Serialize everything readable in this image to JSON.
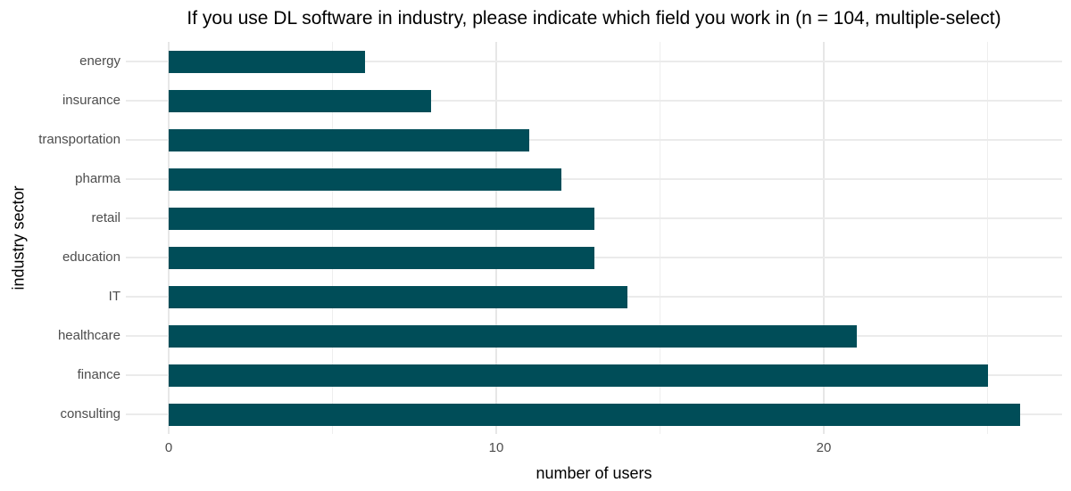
{
  "title": "If you use DL software in industry, please indicate which field you work in (n = 104, multiple-select)",
  "colors": {
    "bar": "#004d58",
    "grid_major": "#e7e7e7",
    "grid_minor": "#eeeeee",
    "axis_tick_text": "#4d4d4d",
    "title_text": "#000000",
    "background": "#ffffff"
  },
  "chart_data": {
    "type": "bar",
    "orientation": "horizontal",
    "title": "If you use DL software in industry, please indicate which field you work in (n = 104, multiple-select)",
    "xlabel": "number of users",
    "ylabel": "industry sector",
    "categories": [
      "energy",
      "insurance",
      "transportation",
      "pharma",
      "retail",
      "education",
      "IT",
      "healthcare",
      "finance",
      "consulting"
    ],
    "values": [
      6,
      8,
      11,
      12,
      13,
      13,
      14,
      21,
      25,
      26
    ],
    "x_major_ticks": [
      0,
      10,
      20
    ],
    "x_minor_ticks": [
      5,
      15,
      25
    ],
    "xlim": [
      -1.31,
      27.31
    ],
    "grid": true,
    "legend": false
  }
}
